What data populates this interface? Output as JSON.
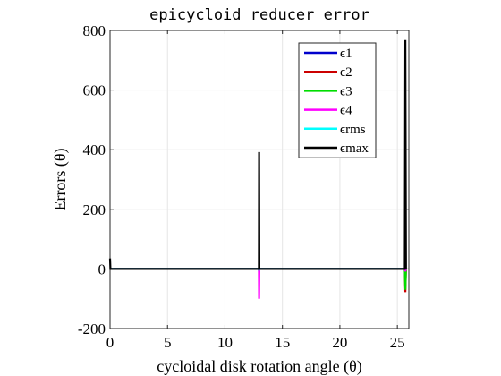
{
  "chart_data": {
    "type": "line",
    "title": "epicycloid reducer error",
    "xlabel": "cycloidal disk rotation angle (θ)",
    "ylabel": "Errors (θ)",
    "xlim": [
      0,
      26
    ],
    "ylim": [
      -200,
      800
    ],
    "xticks": [
      0,
      5,
      10,
      15,
      20,
      25
    ],
    "yticks": [
      -200,
      0,
      200,
      400,
      600,
      800
    ],
    "xtick_labels": [
      "0",
      "5",
      "10",
      "15",
      "20",
      "25"
    ],
    "ytick_labels": [
      "-200",
      "0",
      "200",
      "400",
      "600",
      "800"
    ],
    "grid": true,
    "legend_position": "top-right",
    "series": [
      {
        "name": "ϵ1",
        "color": "#0000cc",
        "points": [
          [
            0,
            0
          ],
          [
            12.95,
            0
          ],
          [
            12.97,
            -5
          ],
          [
            12.99,
            0
          ],
          [
            25.65,
            0
          ],
          [
            25.7,
            -5
          ],
          [
            25.75,
            0
          ]
        ]
      },
      {
        "name": "ϵ2",
        "color": "#cc0000",
        "points": [
          [
            0,
            0
          ],
          [
            12.95,
            0
          ],
          [
            12.97,
            -8
          ],
          [
            12.99,
            0
          ],
          [
            25.65,
            0
          ],
          [
            25.7,
            -78
          ],
          [
            25.75,
            0
          ]
        ]
      },
      {
        "name": "ϵ3",
        "color": "#00dd00",
        "points": [
          [
            0,
            0
          ],
          [
            12.95,
            0
          ],
          [
            12.97,
            -10
          ],
          [
            12.99,
            0
          ],
          [
            25.65,
            0
          ],
          [
            25.7,
            -70
          ],
          [
            25.75,
            0
          ]
        ]
      },
      {
        "name": "ϵ4",
        "color": "#ff00ff",
        "points": [
          [
            0,
            0
          ],
          [
            12.95,
            0
          ],
          [
            12.97,
            -100
          ],
          [
            12.99,
            0
          ],
          [
            25.65,
            0
          ],
          [
            25.7,
            -8
          ],
          [
            25.75,
            0
          ]
        ]
      },
      {
        "name": "ϵrms",
        "color": "#00ffff",
        "points": [
          [
            0,
            0
          ],
          [
            12.95,
            0
          ],
          [
            12.97,
            -2
          ],
          [
            12.99,
            0
          ],
          [
            25.65,
            0
          ],
          [
            25.7,
            0
          ],
          [
            25.75,
            0
          ]
        ]
      },
      {
        "name": "ϵmax",
        "color": "#000000",
        "points": [
          [
            0,
            35
          ],
          [
            0.03,
            0
          ],
          [
            12.95,
            0
          ],
          [
            12.97,
            392
          ],
          [
            12.99,
            0
          ],
          [
            25.65,
            0
          ],
          [
            25.7,
            768
          ],
          [
            25.75,
            0
          ]
        ]
      }
    ]
  }
}
